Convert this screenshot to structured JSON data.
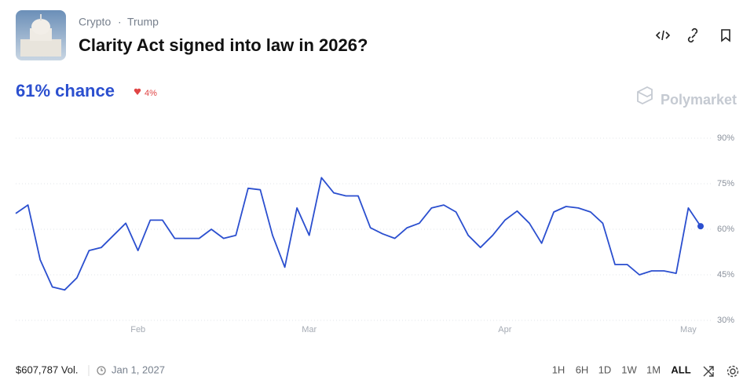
{
  "header": {
    "categories": [
      "Crypto",
      "Trump"
    ],
    "title": "Clarity Act signed into law in 2026?"
  },
  "summary": {
    "chance": "61% chance",
    "change": "4%"
  },
  "brand": "Polymarket",
  "chart_data": {
    "type": "line",
    "color": "#2b4fcf",
    "categories": [
      null,
      null,
      null,
      null,
      null,
      null,
      null,
      null,
      null,
      null,
      "Feb",
      null,
      null,
      null,
      null,
      null,
      null,
      null,
      null,
      null,
      null,
      null,
      null,
      null,
      "Mar",
      null,
      null,
      null,
      null,
      null,
      null,
      null,
      null,
      null,
      null,
      null,
      null,
      null,
      null,
      null,
      "Apr",
      null,
      null,
      null,
      null,
      null,
      null,
      null,
      null,
      null,
      null,
      null,
      null,
      null,
      null,
      "May",
      null
    ],
    "values": [
      65.2,
      68,
      50,
      41,
      40,
      44,
      53,
      54,
      58,
      62,
      53,
      63,
      63,
      57,
      57,
      57,
      60,
      57,
      58,
      73.5,
      73,
      58,
      47.5,
      67,
      58,
      77,
      72,
      71,
      71,
      60.5,
      58.5,
      57,
      60.5,
      62,
      67,
      68,
      65.7,
      58,
      54,
      58,
      63,
      66,
      62,
      55.4,
      65.7,
      67.5,
      67,
      65.7,
      62,
      48.4,
      48.4,
      45,
      46.3,
      46.3,
      45.5,
      67,
      61
    ],
    "ylim": [
      30,
      90
    ],
    "yticks": [
      {
        "value": 30,
        "label": "30%"
      },
      {
        "value": 45,
        "label": "45%"
      },
      {
        "value": 60,
        "label": "60%"
      },
      {
        "value": 75,
        "label": "75%"
      },
      {
        "value": 90,
        "label": "90%"
      }
    ],
    "grid": true
  },
  "footer": {
    "volume": "$607,787 Vol.",
    "end_date": "Jan 1, 2027",
    "ranges": [
      "1H",
      "6H",
      "1D",
      "1W",
      "1M",
      "ALL"
    ]
  }
}
